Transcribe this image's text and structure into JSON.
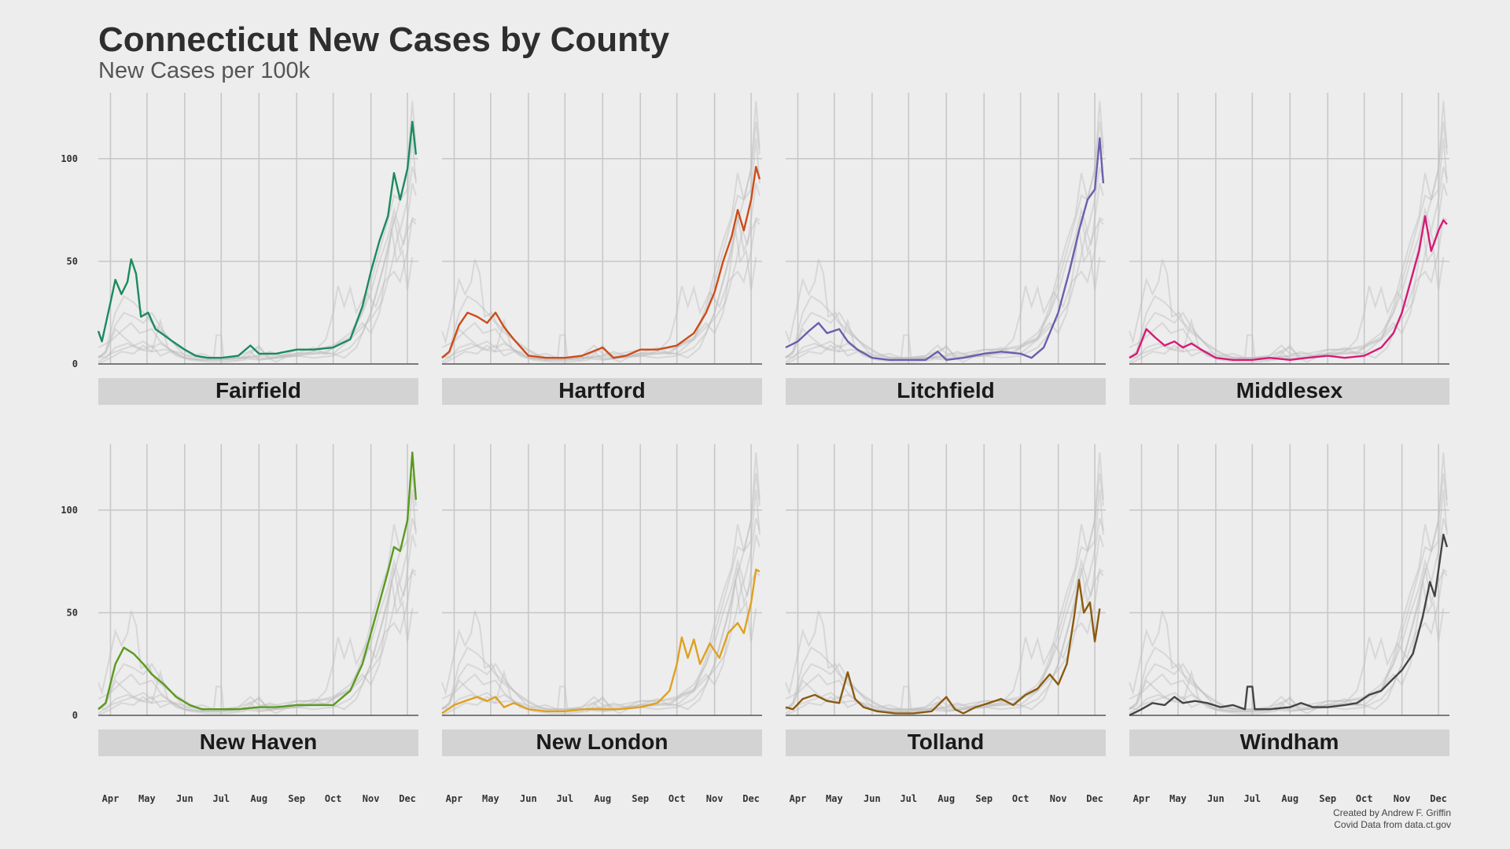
{
  "title": "Connecticut New Cases by County",
  "subtitle": "New Cases per 100k",
  "credit_line1": "Created by Andrew F. Griffin",
  "credit_line2": "Covid Data from data.ct.gov",
  "colors": {
    "background": "#ededed",
    "grid": "#c8c8c8",
    "strip": "#d3d3d3",
    "ghost": "#bdbdbd",
    "baseline": "#555555"
  },
  "chart_data": {
    "type": "line",
    "layout": "small-multiples 2x4",
    "ylim": [
      0,
      130
    ],
    "yticks": [
      0,
      50,
      100
    ],
    "x_months": [
      "Apr",
      "May",
      "Jun",
      "Jul",
      "Aug",
      "Sep",
      "Oct",
      "Nov",
      "Dec"
    ],
    "x_start": "2020-03-22",
    "x_end": "2020-12-10",
    "grid": true,
    "shared_background_series": true,
    "panels": [
      {
        "name": "Fairfield",
        "color": "#1b8a5f",
        "points": [
          [
            "2020-03-22",
            16
          ],
          [
            "2020-03-25",
            11
          ],
          [
            "2020-04-01",
            30
          ],
          [
            "2020-04-05",
            41
          ],
          [
            "2020-04-10",
            34
          ],
          [
            "2020-04-15",
            40
          ],
          [
            "2020-04-18",
            51
          ],
          [
            "2020-04-22",
            44
          ],
          [
            "2020-04-26",
            23
          ],
          [
            "2020-05-02",
            25
          ],
          [
            "2020-05-08",
            17
          ],
          [
            "2020-05-15",
            14
          ],
          [
            "2020-05-22",
            11
          ],
          [
            "2020-06-01",
            7
          ],
          [
            "2020-06-10",
            4
          ],
          [
            "2020-06-20",
            3
          ],
          [
            "2020-07-01",
            3
          ],
          [
            "2020-07-15",
            4
          ],
          [
            "2020-07-25",
            9
          ],
          [
            "2020-08-01",
            5
          ],
          [
            "2020-08-15",
            5
          ],
          [
            "2020-09-01",
            7
          ],
          [
            "2020-09-15",
            7
          ],
          [
            "2020-10-01",
            8
          ],
          [
            "2020-10-15",
            12
          ],
          [
            "2020-10-25",
            28
          ],
          [
            "2020-11-01",
            45
          ],
          [
            "2020-11-08",
            60
          ],
          [
            "2020-11-15",
            72
          ],
          [
            "2020-11-20",
            93
          ],
          [
            "2020-11-25",
            80
          ],
          [
            "2020-12-01",
            95
          ],
          [
            "2020-12-05",
            118
          ],
          [
            "2020-12-08",
            102
          ]
        ]
      },
      {
        "name": "Hartford",
        "color": "#cc4c1a",
        "points": [
          [
            "2020-03-22",
            3
          ],
          [
            "2020-03-28",
            6
          ],
          [
            "2020-04-05",
            19
          ],
          [
            "2020-04-12",
            25
          ],
          [
            "2020-04-20",
            23
          ],
          [
            "2020-04-28",
            20
          ],
          [
            "2020-05-05",
            25
          ],
          [
            "2020-05-12",
            18
          ],
          [
            "2020-05-20",
            12
          ],
          [
            "2020-06-01",
            4
          ],
          [
            "2020-06-15",
            3
          ],
          [
            "2020-07-01",
            3
          ],
          [
            "2020-07-15",
            4
          ],
          [
            "2020-08-01",
            8
          ],
          [
            "2020-08-10",
            3
          ],
          [
            "2020-08-20",
            4
          ],
          [
            "2020-09-01",
            7
          ],
          [
            "2020-09-15",
            7
          ],
          [
            "2020-10-01",
            9
          ],
          [
            "2020-10-15",
            15
          ],
          [
            "2020-10-25",
            25
          ],
          [
            "2020-11-01",
            35
          ],
          [
            "2020-11-08",
            50
          ],
          [
            "2020-11-15",
            62
          ],
          [
            "2020-11-20",
            75
          ],
          [
            "2020-11-25",
            65
          ],
          [
            "2020-12-01",
            80
          ],
          [
            "2020-12-05",
            96
          ],
          [
            "2020-12-08",
            90
          ]
        ]
      },
      {
        "name": "Litchfield",
        "color": "#6a5fad",
        "points": [
          [
            "2020-03-22",
            8
          ],
          [
            "2020-04-01",
            11
          ],
          [
            "2020-04-10",
            16
          ],
          [
            "2020-04-18",
            20
          ],
          [
            "2020-04-25",
            15
          ],
          [
            "2020-05-05",
            17
          ],
          [
            "2020-05-12",
            11
          ],
          [
            "2020-05-20",
            7
          ],
          [
            "2020-06-01",
            3
          ],
          [
            "2020-06-15",
            2
          ],
          [
            "2020-07-01",
            2
          ],
          [
            "2020-07-15",
            2
          ],
          [
            "2020-07-25",
            6
          ],
          [
            "2020-08-01",
            2
          ],
          [
            "2020-08-15",
            3
          ],
          [
            "2020-09-01",
            5
          ],
          [
            "2020-09-15",
            6
          ],
          [
            "2020-10-01",
            5
          ],
          [
            "2020-10-10",
            3
          ],
          [
            "2020-10-20",
            8
          ],
          [
            "2020-11-01",
            25
          ],
          [
            "2020-11-10",
            45
          ],
          [
            "2020-11-18",
            65
          ],
          [
            "2020-11-25",
            80
          ],
          [
            "2020-12-01",
            85
          ],
          [
            "2020-12-05",
            110
          ],
          [
            "2020-12-08",
            88
          ]
        ]
      },
      {
        "name": "Middlesex",
        "color": "#d61a75",
        "points": [
          [
            "2020-03-22",
            3
          ],
          [
            "2020-03-28",
            5
          ],
          [
            "2020-04-05",
            17
          ],
          [
            "2020-04-12",
            13
          ],
          [
            "2020-04-20",
            9
          ],
          [
            "2020-04-28",
            11
          ],
          [
            "2020-05-05",
            8
          ],
          [
            "2020-05-12",
            10
          ],
          [
            "2020-05-20",
            7
          ],
          [
            "2020-06-01",
            3
          ],
          [
            "2020-06-15",
            2
          ],
          [
            "2020-07-01",
            2
          ],
          [
            "2020-07-15",
            3
          ],
          [
            "2020-08-01",
            2
          ],
          [
            "2020-08-15",
            3
          ],
          [
            "2020-09-01",
            4
          ],
          [
            "2020-09-15",
            3
          ],
          [
            "2020-10-01",
            4
          ],
          [
            "2020-10-15",
            8
          ],
          [
            "2020-10-25",
            15
          ],
          [
            "2020-11-01",
            25
          ],
          [
            "2020-11-08",
            40
          ],
          [
            "2020-11-15",
            55
          ],
          [
            "2020-11-20",
            72
          ],
          [
            "2020-11-25",
            55
          ],
          [
            "2020-12-01",
            65
          ],
          [
            "2020-12-05",
            70
          ],
          [
            "2020-12-08",
            68
          ]
        ]
      },
      {
        "name": "New Haven",
        "color": "#5a9a1f",
        "points": [
          [
            "2020-03-22",
            3
          ],
          [
            "2020-03-28",
            6
          ],
          [
            "2020-04-05",
            25
          ],
          [
            "2020-04-12",
            33
          ],
          [
            "2020-04-20",
            30
          ],
          [
            "2020-04-28",
            25
          ],
          [
            "2020-05-05",
            20
          ],
          [
            "2020-05-15",
            15
          ],
          [
            "2020-05-25",
            9
          ],
          [
            "2020-06-05",
            5
          ],
          [
            "2020-06-15",
            3
          ],
          [
            "2020-07-01",
            3
          ],
          [
            "2020-07-15",
            3
          ],
          [
            "2020-08-01",
            4
          ],
          [
            "2020-08-15",
            4
          ],
          [
            "2020-09-01",
            5
          ],
          [
            "2020-09-15",
            5
          ],
          [
            "2020-10-01",
            5
          ],
          [
            "2020-10-15",
            12
          ],
          [
            "2020-10-25",
            25
          ],
          [
            "2020-11-01",
            40
          ],
          [
            "2020-11-08",
            55
          ],
          [
            "2020-11-15",
            70
          ],
          [
            "2020-11-20",
            82
          ],
          [
            "2020-11-25",
            80
          ],
          [
            "2020-12-01",
            95
          ],
          [
            "2020-12-05",
            128
          ],
          [
            "2020-12-08",
            105
          ]
        ]
      },
      {
        "name": "New London",
        "color": "#e0a020",
        "points": [
          [
            "2020-03-22",
            1
          ],
          [
            "2020-04-01",
            5
          ],
          [
            "2020-04-10",
            7
          ],
          [
            "2020-04-20",
            9
          ],
          [
            "2020-04-28",
            7
          ],
          [
            "2020-05-05",
            9
          ],
          [
            "2020-05-12",
            4
          ],
          [
            "2020-05-20",
            6
          ],
          [
            "2020-06-01",
            3
          ],
          [
            "2020-06-15",
            2
          ],
          [
            "2020-07-01",
            2
          ],
          [
            "2020-07-15",
            3
          ],
          [
            "2020-08-01",
            3
          ],
          [
            "2020-08-15",
            3
          ],
          [
            "2020-09-01",
            4
          ],
          [
            "2020-09-15",
            6
          ],
          [
            "2020-09-25",
            12
          ],
          [
            "2020-10-01",
            25
          ],
          [
            "2020-10-05",
            38
          ],
          [
            "2020-10-10",
            28
          ],
          [
            "2020-10-15",
            37
          ],
          [
            "2020-10-20",
            25
          ],
          [
            "2020-10-28",
            35
          ],
          [
            "2020-11-05",
            28
          ],
          [
            "2020-11-12",
            40
          ],
          [
            "2020-11-20",
            45
          ],
          [
            "2020-11-25",
            40
          ],
          [
            "2020-12-01",
            55
          ],
          [
            "2020-12-05",
            71
          ],
          [
            "2020-12-08",
            70
          ]
        ]
      },
      {
        "name": "Tolland",
        "color": "#8a5a10",
        "points": [
          [
            "2020-03-22",
            4
          ],
          [
            "2020-03-28",
            3
          ],
          [
            "2020-04-05",
            8
          ],
          [
            "2020-04-15",
            10
          ],
          [
            "2020-04-25",
            7
          ],
          [
            "2020-05-05",
            6
          ],
          [
            "2020-05-12",
            21
          ],
          [
            "2020-05-18",
            8
          ],
          [
            "2020-05-25",
            4
          ],
          [
            "2020-06-05",
            2
          ],
          [
            "2020-06-20",
            1
          ],
          [
            "2020-07-05",
            1
          ],
          [
            "2020-07-20",
            2
          ],
          [
            "2020-08-01",
            9
          ],
          [
            "2020-08-08",
            3
          ],
          [
            "2020-08-15",
            1
          ],
          [
            "2020-08-25",
            4
          ],
          [
            "2020-09-05",
            6
          ],
          [
            "2020-09-15",
            8
          ],
          [
            "2020-09-25",
            5
          ],
          [
            "2020-10-05",
            10
          ],
          [
            "2020-10-15",
            13
          ],
          [
            "2020-10-25",
            20
          ],
          [
            "2020-11-01",
            15
          ],
          [
            "2020-11-08",
            25
          ],
          [
            "2020-11-14",
            48
          ],
          [
            "2020-11-18",
            66
          ],
          [
            "2020-11-22",
            50
          ],
          [
            "2020-11-27",
            55
          ],
          [
            "2020-12-01",
            36
          ],
          [
            "2020-12-05",
            52
          ]
        ]
      },
      {
        "name": "Windham",
        "color": "#444444",
        "points": [
          [
            "2020-03-22",
            0
          ],
          [
            "2020-04-01",
            3
          ],
          [
            "2020-04-10",
            6
          ],
          [
            "2020-04-20",
            5
          ],
          [
            "2020-04-28",
            9
          ],
          [
            "2020-05-05",
            6
          ],
          [
            "2020-05-15",
            7
          ],
          [
            "2020-05-25",
            6
          ],
          [
            "2020-06-05",
            4
          ],
          [
            "2020-06-15",
            5
          ],
          [
            "2020-06-25",
            3
          ],
          [
            "2020-06-27",
            14
          ],
          [
            "2020-07-01",
            14
          ],
          [
            "2020-07-03",
            3
          ],
          [
            "2020-07-15",
            3
          ],
          [
            "2020-08-01",
            4
          ],
          [
            "2020-08-10",
            6
          ],
          [
            "2020-08-20",
            4
          ],
          [
            "2020-09-01",
            4
          ],
          [
            "2020-09-15",
            5
          ],
          [
            "2020-09-25",
            6
          ],
          [
            "2020-10-05",
            10
          ],
          [
            "2020-10-15",
            12
          ],
          [
            "2020-10-25",
            18
          ],
          [
            "2020-11-01",
            22
          ],
          [
            "2020-11-10",
            30
          ],
          [
            "2020-11-18",
            48
          ],
          [
            "2020-11-24",
            65
          ],
          [
            "2020-11-28",
            58
          ],
          [
            "2020-12-02",
            75
          ],
          [
            "2020-12-05",
            88
          ],
          [
            "2020-12-08",
            82
          ]
        ]
      }
    ]
  }
}
